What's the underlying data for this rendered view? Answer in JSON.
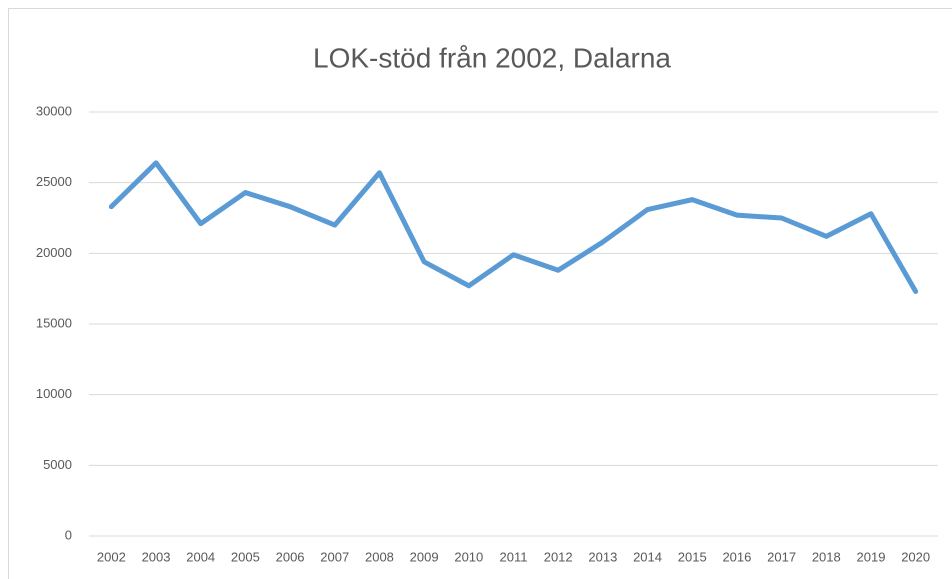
{
  "chart_data": {
    "type": "line",
    "title": "LOK-stöd från 2002, Dalarna",
    "categories": [
      "2002",
      "2003",
      "2004",
      "2005",
      "2006",
      "2007",
      "2008",
      "2009",
      "2010",
      "2011",
      "2012",
      "2013",
      "2014",
      "2015",
      "2016",
      "2017",
      "2018",
      "2019",
      "2020"
    ],
    "series": [
      {
        "name": "LOK-stöd",
        "color": "#5b9bd5",
        "values": [
          23300,
          26400,
          22100,
          24300,
          23300,
          22000,
          25700,
          19400,
          17700,
          19900,
          18800,
          20800,
          23100,
          23800,
          22700,
          22500,
          21200,
          22800,
          17300
        ]
      }
    ],
    "ylim": [
      0,
      30000
    ],
    "yticks": [
      0,
      5000,
      10000,
      15000,
      20000,
      25000,
      30000
    ],
    "grid": true
  }
}
